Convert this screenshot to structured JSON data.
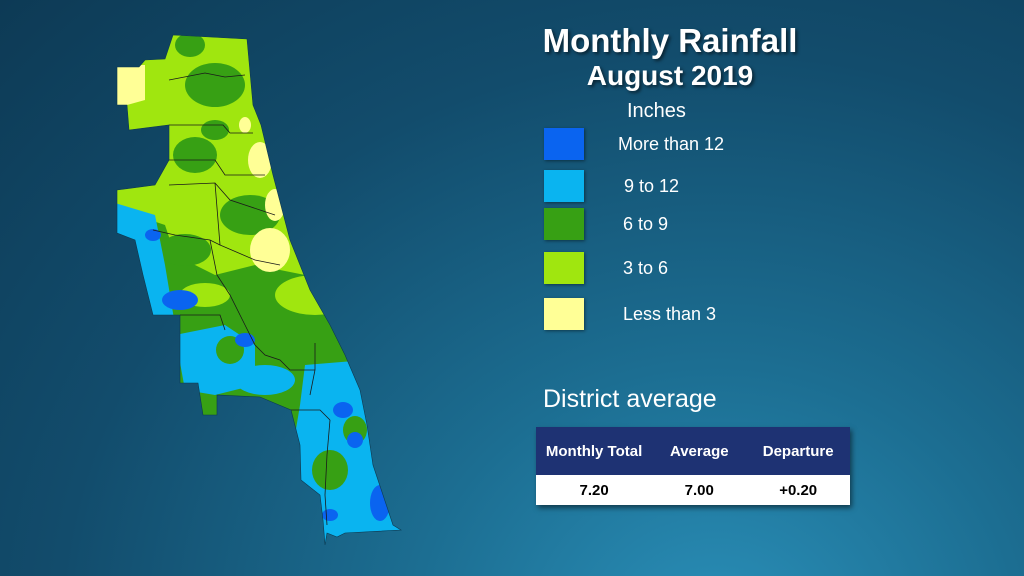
{
  "title": "Monthly Rainfall",
  "subtitle": "August 2019",
  "legend": {
    "units": "Inches",
    "items": [
      {
        "label": "More than 12",
        "color": "#0a64f0"
      },
      {
        "label": "9 to 12",
        "color": "#0ab4f0"
      },
      {
        "label": "6 to 9",
        "color": "#37a014"
      },
      {
        "label": "3 to 6",
        "color": "#a0e60f"
      },
      {
        "label": "Less than 3",
        "color": "#ffff96"
      }
    ]
  },
  "district": {
    "heading": "District average",
    "headers": [
      "Monthly Total",
      "Average",
      "Departure"
    ],
    "values": [
      "7.20",
      "7.00",
      "+0.20"
    ]
  }
}
